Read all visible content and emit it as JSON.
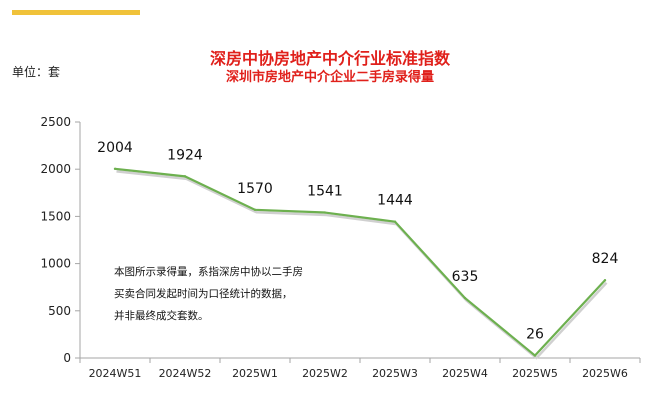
{
  "header": {
    "accent_color": "#f0c23a"
  },
  "unit_label": "单位：套",
  "note": {
    "lines": [
      "本图所示录得量，系指深房中协以二手房",
      "买卖合同发起时间为口径统计的数据，",
      "并非最终成交套数。"
    ]
  },
  "colors": {
    "title": "#e0201b",
    "line": "#6db04f",
    "axis": "#a6a6a6",
    "text": "#222222"
  },
  "chart_data": {
    "type": "line",
    "title": "深房中协房地产中介行业标准指数",
    "subtitle": "深圳市房地产中介企业二手房录得量",
    "xlabel": "",
    "ylabel": "",
    "categories": [
      "2024W51",
      "2024W52",
      "2025W1",
      "2025W2",
      "2025W3",
      "2025W4",
      "2025W5",
      "2025W6"
    ],
    "series": [
      {
        "values": [
          2004,
          1924,
          1570,
          1541,
          1444,
          635,
          26,
          824
        ]
      }
    ],
    "ylim": [
      0,
      2500
    ],
    "yticks": [
      0,
      500,
      1000,
      1500,
      2000,
      2500
    ],
    "grid": false,
    "legend": "none"
  }
}
